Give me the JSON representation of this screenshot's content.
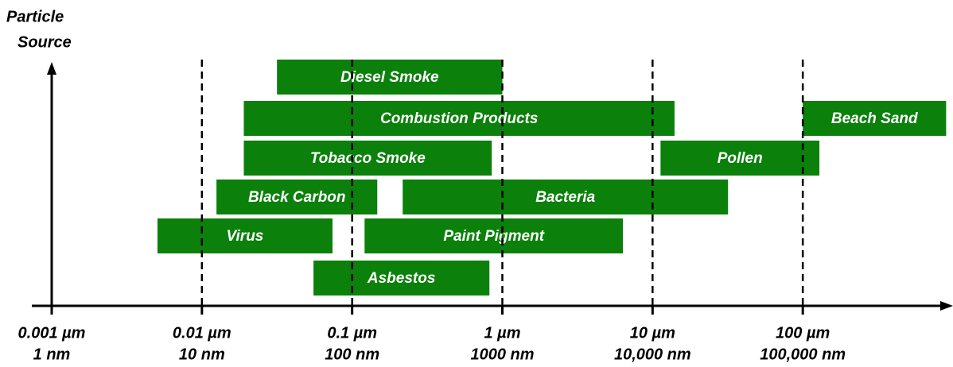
{
  "chart_data": {
    "type": "range-bar",
    "ylabel": [
      "Particle",
      "Source"
    ],
    "xscale": "log",
    "xlim": [
      0.001,
      1000
    ],
    "xticks": [
      {
        "value": 0.001,
        "label": [
          "0.001 µm",
          "1 nm"
        ]
      },
      {
        "value": 0.01,
        "label": [
          "0.01 µm",
          "10 nm"
        ]
      },
      {
        "value": 0.1,
        "label": [
          "0.1 µm",
          "100 nm"
        ]
      },
      {
        "value": 1,
        "label": [
          "1 µm",
          "1000 nm"
        ]
      },
      {
        "value": 10,
        "label": [
          "10 µm",
          "10,000 nm"
        ]
      },
      {
        "value": 100,
        "label": [
          "100 µm",
          "100,000 nm"
        ]
      }
    ],
    "grid": true,
    "color": "#0b800b",
    "bars": [
      {
        "name": "Diesel Smoke",
        "range": [
          0.0316,
          1
        ]
      },
      {
        "name": "Combustion Products",
        "range": [
          0.019,
          14
        ]
      },
      {
        "name": "Beach Sand",
        "range": [
          100,
          900
        ]
      },
      {
        "name": "Tobacco Smoke",
        "range": [
          0.019,
          0.85
        ]
      },
      {
        "name": "Pollen",
        "range": [
          11.3,
          129
        ]
      },
      {
        "name": "Black Carbon",
        "range": [
          0.0125,
          0.147
        ]
      },
      {
        "name": "Bacteria",
        "range": [
          0.217,
          31.8
        ]
      },
      {
        "name": "Virus",
        "range": [
          0.00506,
          0.074
        ]
      },
      {
        "name": "Paint Pigment",
        "range": [
          0.121,
          6.35
        ]
      },
      {
        "name": "Asbestos",
        "range": [
          0.0553,
          0.82
        ]
      }
    ]
  }
}
